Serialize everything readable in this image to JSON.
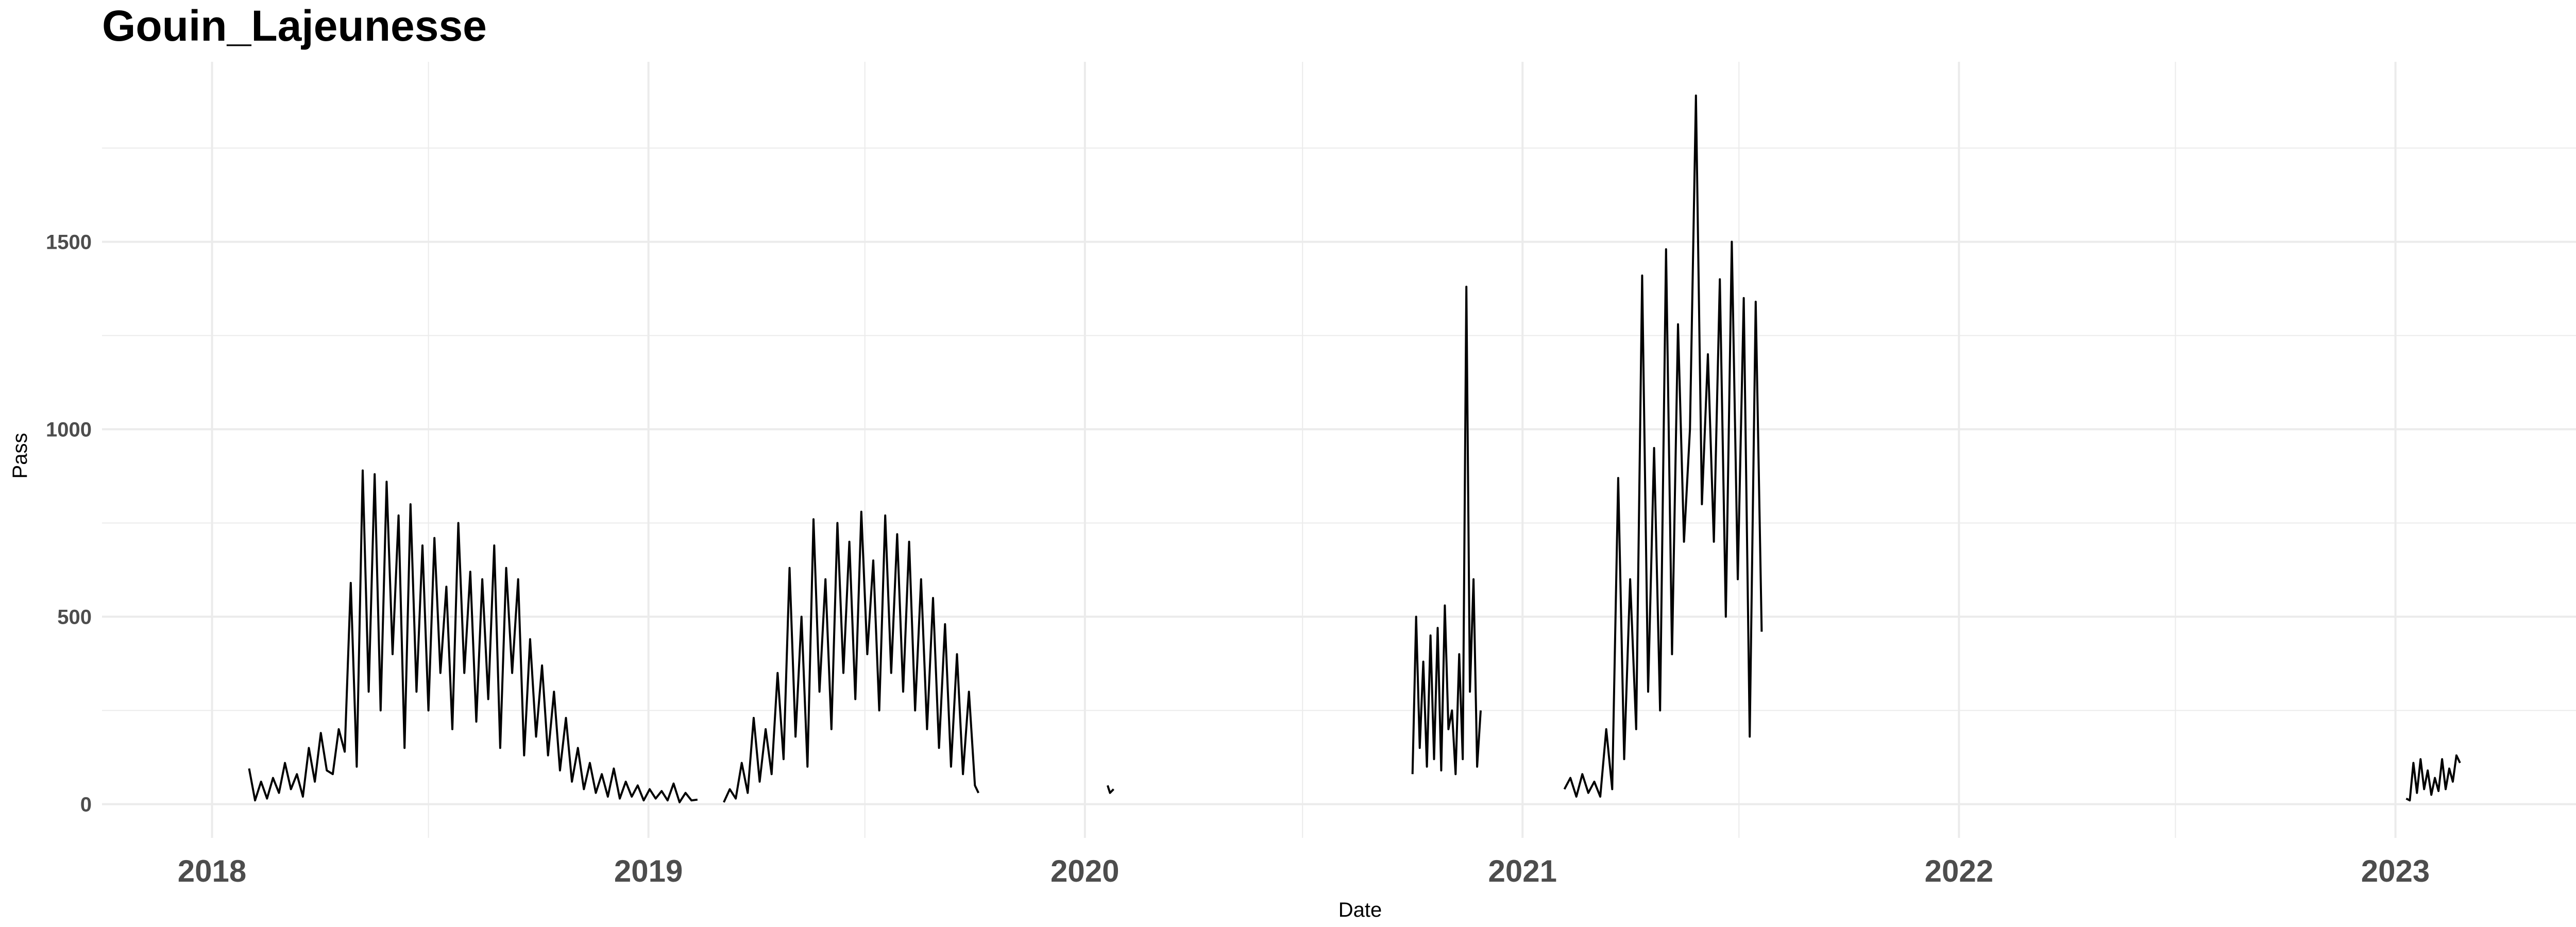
{
  "chart_data": {
    "type": "line",
    "title": "Gouin_Lajeunesse",
    "xlabel": "Date",
    "ylabel": "Pass",
    "x_scale": "date",
    "xlim": [
      "2017-10-01",
      "2023-06-01"
    ],
    "ylim": [
      -90,
      1980
    ],
    "x_ticks": [
      {
        "date": "2018-01-01",
        "label": "2018"
      },
      {
        "date": "2019-01-01",
        "label": "2019"
      },
      {
        "date": "2020-01-01",
        "label": "2020"
      },
      {
        "date": "2021-01-01",
        "label": "2021"
      },
      {
        "date": "2022-01-01",
        "label": "2022"
      },
      {
        "date": "2023-01-01",
        "label": "2023"
      }
    ],
    "x_minor_ticks": [
      "2018-07-01",
      "2019-07-01",
      "2020-07-01",
      "2021-07-01",
      "2022-07-01"
    ],
    "y_ticks": [
      0,
      500,
      1000,
      1500
    ],
    "y_minor_ticks": [
      250,
      750,
      1250,
      1750
    ],
    "grid": true,
    "colors": {
      "line": "#000000",
      "grid": "#ebebeb"
    },
    "series": [
      {
        "segments": [
          {
            "x": [
              "2018-02-01",
              "2018-02-06",
              "2018-02-11",
              "2018-02-16",
              "2018-02-21",
              "2018-02-26",
              "2018-03-03",
              "2018-03-08",
              "2018-03-13",
              "2018-03-18",
              "2018-03-23",
              "2018-03-28",
              "2018-04-02",
              "2018-04-07",
              "2018-04-12",
              "2018-04-17",
              "2018-04-22",
              "2018-04-27",
              "2018-05-02",
              "2018-05-07",
              "2018-05-12",
              "2018-05-17",
              "2018-05-22",
              "2018-05-27",
              "2018-06-01",
              "2018-06-06",
              "2018-06-11",
              "2018-06-16",
              "2018-06-21",
              "2018-06-26",
              "2018-07-01",
              "2018-07-06",
              "2018-07-11",
              "2018-07-16",
              "2018-07-21",
              "2018-07-26",
              "2018-07-31",
              "2018-08-05",
              "2018-08-10",
              "2018-08-15",
              "2018-08-20",
              "2018-08-25",
              "2018-08-30",
              "2018-09-04",
              "2018-09-09",
              "2018-09-14",
              "2018-09-19",
              "2018-09-24",
              "2018-09-29",
              "2018-10-04",
              "2018-10-09",
              "2018-10-14",
              "2018-10-19",
              "2018-10-24",
              "2018-10-29",
              "2018-11-03",
              "2018-11-08",
              "2018-11-13",
              "2018-11-18",
              "2018-11-23",
              "2018-11-28",
              "2018-12-03",
              "2018-12-08",
              "2018-12-13",
              "2018-12-18",
              "2018-12-23",
              "2018-12-28",
              "2019-01-02",
              "2019-01-07",
              "2019-01-12",
              "2019-01-17",
              "2019-01-22",
              "2019-01-27",
              "2019-02-01",
              "2019-02-06",
              "2019-02-11"
            ],
            "y": [
              95,
              10,
              60,
              15,
              70,
              30,
              110,
              40,
              80,
              20,
              150,
              60,
              190,
              90,
              80,
              200,
              140,
              590,
              100,
              890,
              300,
              880,
              250,
              860,
              400,
              770,
              150,
              800,
              300,
              690,
              250,
              710,
              350,
              580,
              200,
              750,
              350,
              620,
              220,
              600,
              280,
              690,
              150,
              630,
              350,
              600,
              130,
              440,
              180,
              370,
              130,
              300,
              90,
              230,
              60,
              150,
              40,
              110,
              30,
              80,
              20,
              95,
              15,
              60,
              20,
              50,
              10,
              40,
              15,
              35,
              10,
              55,
              5,
              30,
              10,
              12
            ]
          },
          {
            "x": [
              "2019-03-05",
              "2019-03-10",
              "2019-03-15",
              "2019-03-20",
              "2019-03-25",
              "2019-03-30",
              "2019-04-04",
              "2019-04-09",
              "2019-04-14",
              "2019-04-19",
              "2019-04-24",
              "2019-04-29",
              "2019-05-04",
              "2019-05-09",
              "2019-05-14",
              "2019-05-19",
              "2019-05-24",
              "2019-05-29",
              "2019-06-03",
              "2019-06-08",
              "2019-06-13",
              "2019-06-18",
              "2019-06-23",
              "2019-06-28",
              "2019-07-03",
              "2019-07-08",
              "2019-07-13",
              "2019-07-18",
              "2019-07-23",
              "2019-07-28",
              "2019-08-02",
              "2019-08-07",
              "2019-08-12",
              "2019-08-17",
              "2019-08-22",
              "2019-08-27",
              "2019-09-01",
              "2019-09-06",
              "2019-09-11",
              "2019-09-16",
              "2019-09-21",
              "2019-09-26",
              "2019-10-01",
              "2019-10-04"
            ],
            "y": [
              5,
              40,
              15,
              110,
              30,
              230,
              60,
              200,
              80,
              350,
              120,
              630,
              180,
              500,
              100,
              760,
              300,
              600,
              200,
              750,
              350,
              700,
              280,
              780,
              400,
              650,
              250,
              770,
              350,
              720,
              300,
              700,
              250,
              600,
              200,
              550,
              150,
              480,
              100,
              400,
              80,
              300,
              50,
              30
            ]
          },
          {
            "x": [
              "2020-01-20",
              "2020-01-22",
              "2020-01-25"
            ],
            "y": [
              50,
              30,
              40
            ]
          },
          {
            "x": [
              "2020-10-01",
              "2020-10-04",
              "2020-10-07",
              "2020-10-10",
              "2020-10-13",
              "2020-10-16",
              "2020-10-19",
              "2020-10-22",
              "2020-10-25",
              "2020-10-28",
              "2020-10-31",
              "2020-11-03",
              "2020-11-06",
              "2020-11-09",
              "2020-11-12",
              "2020-11-15",
              "2020-11-18",
              "2020-11-21",
              "2020-11-24",
              "2020-11-27"
            ],
            "y": [
              80,
              500,
              150,
              380,
              100,
              450,
              120,
              470,
              90,
              530,
              200,
              250,
              80,
              400,
              120,
              1380,
              300,
              600,
              100,
              250
            ]
          },
          {
            "x": [
              "2021-02-05",
              "2021-02-10",
              "2021-02-15",
              "2021-02-20",
              "2021-02-25",
              "2021-03-02",
              "2021-03-07",
              "2021-03-12",
              "2021-03-17",
              "2021-03-22",
              "2021-03-27",
              "2021-04-01",
              "2021-04-06",
              "2021-04-11",
              "2021-04-16",
              "2021-04-21",
              "2021-04-26",
              "2021-05-01",
              "2021-05-06",
              "2021-05-11",
              "2021-05-16",
              "2021-05-21",
              "2021-05-26",
              "2021-05-31",
              "2021-06-05",
              "2021-06-10",
              "2021-06-15",
              "2021-06-20",
              "2021-06-25",
              "2021-06-30",
              "2021-07-05",
              "2021-07-10",
              "2021-07-15",
              "2021-07-20"
            ],
            "y": [
              40,
              70,
              20,
              80,
              30,
              60,
              20,
              200,
              40,
              870,
              120,
              600,
              200,
              1410,
              300,
              950,
              250,
              1480,
              400,
              1280,
              700,
              1000,
              1890,
              800,
              1200,
              700,
              1400,
              500,
              1500,
              600,
              1350,
              180,
              1340,
              460
            ]
          },
          {
            "x": [
              "2023-01-10",
              "2023-01-13",
              "2023-01-16",
              "2023-01-19",
              "2023-01-22",
              "2023-01-25",
              "2023-01-28",
              "2023-01-31",
              "2023-02-03",
              "2023-02-06",
              "2023-02-09",
              "2023-02-12",
              "2023-02-15",
              "2023-02-18",
              "2023-02-21",
              "2023-02-24"
            ],
            "y": [
              15,
              10,
              110,
              30,
              120,
              40,
              90,
              25,
              70,
              35,
              120,
              40,
              95,
              60,
              130,
              110
            ]
          }
        ]
      }
    ]
  }
}
